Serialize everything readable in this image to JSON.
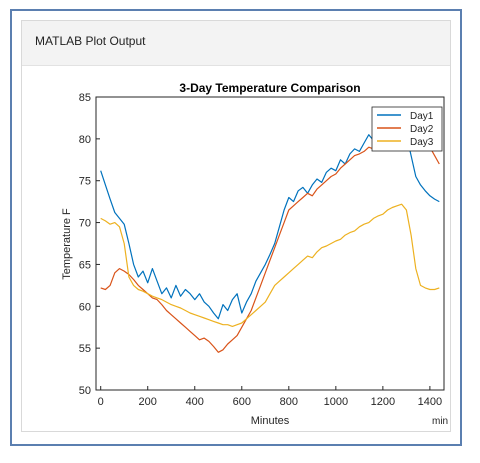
{
  "panel": {
    "title": "MATLAB Plot Output"
  },
  "chart_data": {
    "type": "line",
    "title": "3-Day Temperature Comparison",
    "xlabel": "Minutes",
    "ylabel": "Temperature F",
    "x_unit": "min",
    "xlim": [
      -20,
      1460
    ],
    "ylim": [
      50,
      85
    ],
    "xticks": [
      0,
      200,
      400,
      600,
      800,
      1000,
      1200,
      1400
    ],
    "yticks": [
      50,
      55,
      60,
      65,
      70,
      75,
      80,
      85
    ],
    "grid": false,
    "legend_position": "top-right",
    "series": [
      {
        "name": "Day1",
        "color": "#0072bd",
        "x": [
          0,
          20,
          40,
          60,
          80,
          100,
          120,
          140,
          160,
          180,
          200,
          220,
          240,
          260,
          280,
          300,
          320,
          340,
          360,
          380,
          400,
          420,
          440,
          460,
          480,
          500,
          520,
          540,
          560,
          580,
          600,
          620,
          640,
          660,
          680,
          700,
          720,
          740,
          760,
          780,
          800,
          820,
          840,
          860,
          880,
          900,
          920,
          940,
          960,
          980,
          1000,
          1020,
          1040,
          1060,
          1080,
          1100,
          1120,
          1140,
          1160,
          1180,
          1200,
          1220,
          1240,
          1260,
          1280,
          1300,
          1320,
          1340,
          1360,
          1380,
          1400,
          1420,
          1440
        ],
        "y": [
          76.2,
          74.5,
          72.8,
          71.2,
          70.5,
          69.8,
          67.5,
          65.0,
          63.5,
          64.2,
          62.8,
          64.5,
          63.0,
          61.5,
          62.2,
          61.0,
          62.5,
          61.2,
          62.0,
          61.5,
          60.8,
          61.5,
          60.5,
          60.0,
          59.2,
          58.5,
          60.2,
          59.5,
          60.8,
          61.5,
          59.2,
          60.5,
          61.5,
          63.0,
          64.0,
          65.0,
          66.2,
          67.5,
          69.5,
          71.5,
          73.0,
          72.5,
          73.8,
          74.2,
          73.5,
          74.5,
          75.2,
          74.8,
          76.0,
          76.5,
          76.2,
          77.5,
          77.0,
          78.2,
          78.8,
          78.5,
          79.5,
          80.5,
          79.8,
          80.5,
          81.5,
          82.0,
          82.5,
          82.0,
          81.5,
          80.5,
          78.0,
          75.5,
          74.5,
          73.8,
          73.2,
          72.8,
          72.5
        ]
      },
      {
        "name": "Day2",
        "color": "#d95319",
        "x": [
          0,
          20,
          40,
          60,
          80,
          100,
          120,
          140,
          160,
          180,
          200,
          220,
          240,
          260,
          280,
          300,
          320,
          340,
          360,
          380,
          400,
          420,
          440,
          460,
          480,
          500,
          520,
          540,
          560,
          580,
          600,
          620,
          640,
          660,
          680,
          700,
          720,
          740,
          760,
          780,
          800,
          820,
          840,
          860,
          880,
          900,
          920,
          940,
          960,
          980,
          1000,
          1020,
          1040,
          1060,
          1080,
          1100,
          1120,
          1140,
          1160,
          1180,
          1200,
          1220,
          1240,
          1260,
          1280,
          1300,
          1320,
          1340,
          1360,
          1380,
          1400,
          1420,
          1440
        ],
        "y": [
          62.2,
          62.0,
          62.5,
          64.0,
          64.5,
          64.2,
          63.8,
          63.2,
          62.5,
          62.0,
          61.5,
          61.0,
          60.8,
          60.2,
          59.5,
          59.0,
          58.5,
          58.0,
          57.5,
          57.0,
          56.5,
          56.0,
          56.2,
          55.8,
          55.2,
          54.5,
          54.8,
          55.5,
          56.0,
          56.5,
          57.5,
          58.5,
          59.5,
          61.0,
          62.5,
          64.0,
          65.5,
          67.0,
          68.5,
          70.0,
          71.5,
          72.0,
          72.5,
          73.0,
          73.5,
          73.2,
          74.0,
          74.5,
          75.0,
          75.5,
          75.8,
          76.5,
          77.0,
          77.5,
          78.0,
          78.2,
          78.5,
          79.0,
          78.8,
          79.2,
          79.5,
          80.0,
          80.5,
          81.0,
          81.5,
          81.2,
          80.8,
          80.5,
          80.0,
          79.5,
          79.0,
          78.0,
          77.0
        ]
      },
      {
        "name": "Day3",
        "color": "#edb120",
        "x": [
          0,
          20,
          40,
          60,
          80,
          100,
          120,
          140,
          160,
          180,
          200,
          220,
          240,
          260,
          280,
          300,
          320,
          340,
          360,
          380,
          400,
          420,
          440,
          460,
          480,
          500,
          520,
          540,
          560,
          580,
          600,
          620,
          640,
          660,
          680,
          700,
          720,
          740,
          760,
          780,
          800,
          820,
          840,
          860,
          880,
          900,
          920,
          940,
          960,
          980,
          1000,
          1020,
          1040,
          1060,
          1080,
          1100,
          1120,
          1140,
          1160,
          1180,
          1200,
          1220,
          1240,
          1260,
          1280,
          1300,
          1320,
          1340,
          1360,
          1380,
          1400,
          1420,
          1440
        ],
        "y": [
          70.5,
          70.2,
          69.8,
          70.0,
          69.5,
          67.5,
          63.5,
          62.5,
          62.0,
          61.8,
          61.5,
          61.2,
          61.0,
          60.8,
          60.5,
          60.2,
          60.0,
          59.8,
          59.5,
          59.2,
          59.0,
          58.8,
          58.6,
          58.4,
          58.2,
          58.0,
          57.8,
          57.8,
          57.6,
          57.8,
          58.0,
          58.5,
          59.0,
          59.5,
          60.0,
          60.5,
          61.5,
          62.5,
          63.0,
          63.5,
          64.0,
          64.5,
          65.0,
          65.5,
          66.0,
          65.8,
          66.5,
          67.0,
          67.2,
          67.5,
          67.8,
          68.0,
          68.5,
          68.8,
          69.0,
          69.5,
          69.8,
          70.0,
          70.5,
          70.8,
          71.0,
          71.5,
          71.8,
          72.0,
          72.2,
          71.5,
          68.5,
          64.5,
          62.5,
          62.2,
          62.0,
          62.0,
          62.2
        ]
      }
    ]
  }
}
